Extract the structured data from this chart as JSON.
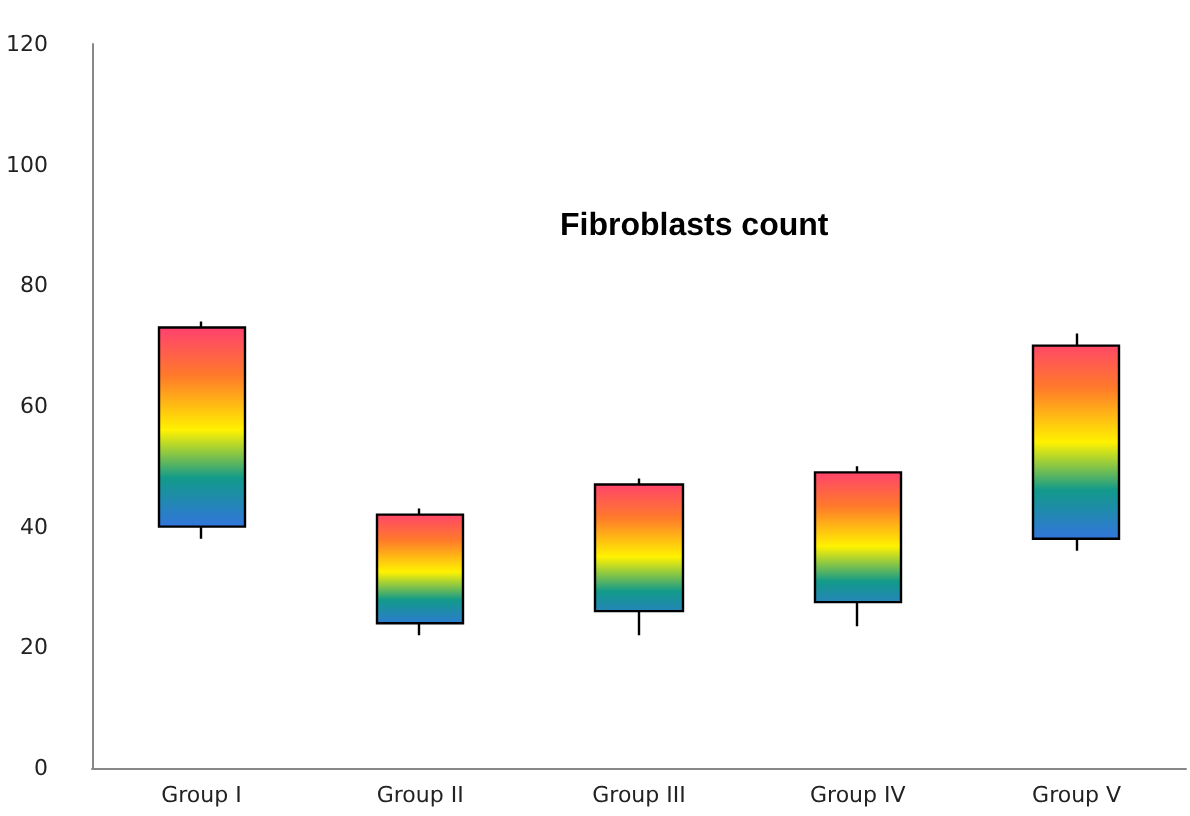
{
  "chart_data": {
    "type": "candlestick",
    "title": "Fibroblasts count",
    "categories": [
      "Group I",
      "Group II",
      "Group III",
      "Group IV",
      "Group V"
    ],
    "ohlc": [
      [
        40,
        74,
        38,
        73
      ],
      [
        24,
        43,
        22,
        42
      ],
      [
        26,
        48,
        22,
        47
      ],
      [
        27.5,
        50,
        23.5,
        49
      ],
      [
        38,
        72,
        36,
        70
      ]
    ],
    "ylim": [
      0,
      120
    ],
    "yticks": [
      0,
      20,
      40,
      60,
      80,
      100,
      120
    ],
    "grid": false
  }
}
